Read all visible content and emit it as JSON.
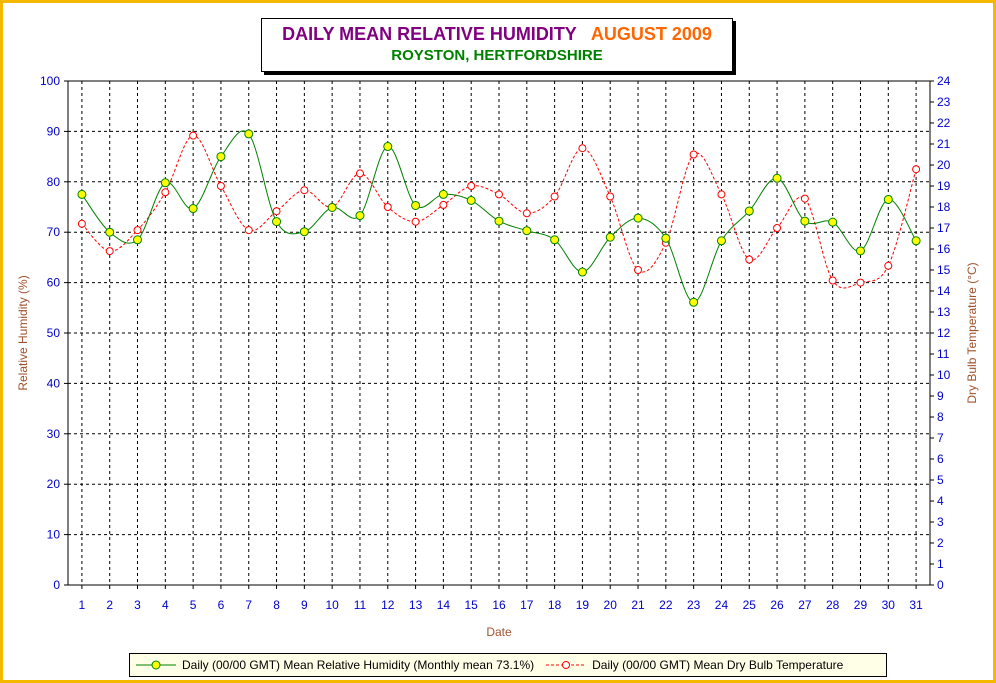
{
  "title": {
    "main": "DAILY MEAN RELATIVE HUMIDITY",
    "month": "AUGUST 2009",
    "location": "ROYSTON, HERTFORDSHIRE"
  },
  "colors": {
    "frame": "#f5b800",
    "title_main": "#800080",
    "title_month": "#ff6600",
    "location": "#008000",
    "humidity_line": "#008000",
    "humidity_marker": "#ffff00",
    "temperature_line": "#ff0000",
    "axis_labels": "#0000cc",
    "axis_titles": "#a0522d"
  },
  "chart_data": {
    "type": "line",
    "x_label": "Date",
    "y_label": "Relative Humidity (%)",
    "y2_label": "Dry Bulb Temperature (°C)",
    "x": [
      1,
      2,
      3,
      4,
      5,
      6,
      7,
      8,
      9,
      10,
      11,
      12,
      13,
      14,
      15,
      16,
      17,
      18,
      19,
      20,
      21,
      22,
      23,
      24,
      25,
      26,
      27,
      28,
      29,
      30,
      31
    ],
    "ylim": [
      0,
      100
    ],
    "y2lim": [
      0,
      24
    ],
    "y_ticks": [
      0,
      10,
      20,
      30,
      40,
      50,
      60,
      70,
      80,
      90,
      100
    ],
    "y2_ticks": [
      0,
      1,
      2,
      3,
      4,
      5,
      6,
      7,
      8,
      9,
      10,
      11,
      12,
      13,
      14,
      15,
      16,
      17,
      18,
      19,
      20,
      21,
      22,
      23,
      24
    ],
    "grid": true,
    "legend_position": "bottom",
    "series": [
      {
        "name": "Daily (00/00 GMT) Mean Relative Humidity (Monthly mean 73.1%)",
        "axis": "left",
        "style": "solid",
        "values": [
          77.5,
          70.0,
          68.5,
          79.8,
          74.7,
          85.0,
          89.5,
          72.1,
          70.1,
          74.9,
          73.3,
          87.0,
          75.3,
          77.5,
          76.3,
          72.2,
          70.3,
          68.5,
          62.1,
          69.0,
          72.8,
          68.8,
          56.1,
          68.3,
          74.2,
          80.7,
          72.2,
          72.0,
          66.3,
          76.5,
          68.3
        ]
      },
      {
        "name": "Daily (00/00 GMT) Mean Dry Bulb Temperature",
        "axis": "right",
        "style": "dashed",
        "values": [
          17.2,
          15.9,
          16.9,
          18.7,
          21.4,
          19.0,
          16.9,
          17.8,
          18.8,
          18.0,
          19.6,
          18.0,
          17.3,
          18.1,
          19.0,
          18.6,
          17.7,
          18.5,
          20.8,
          18.5,
          15.0,
          16.3,
          20.5,
          18.6,
          15.5,
          17.0,
          18.4,
          14.5,
          14.4,
          15.2,
          19.8
        ]
      }
    ]
  }
}
